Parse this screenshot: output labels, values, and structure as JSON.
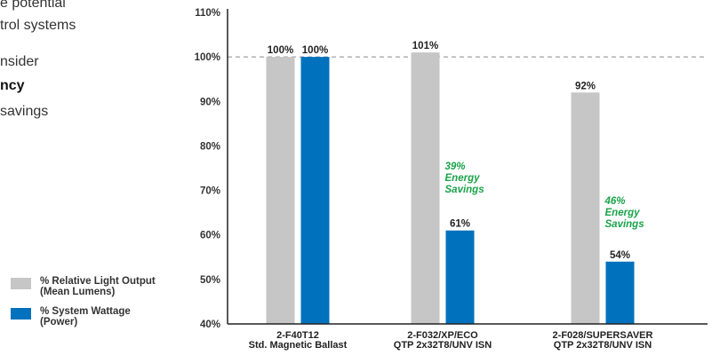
{
  "side_text": [
    {
      "text": "e potential",
      "bold": false
    },
    {
      "text": "trol systems",
      "bold": false
    },
    {
      "text": "nsider",
      "bold": false
    },
    {
      "text": "ncy",
      "bold": true
    },
    {
      "text": "savings",
      "bold": false
    }
  ],
  "legend": [
    {
      "label": "% Relative Light Output\n(Mean Lumens)",
      "color": "#c6c6c6"
    },
    {
      "label": "% System Wattage\n(Power)",
      "color": "#0071bc"
    }
  ],
  "chart_data": {
    "type": "bar",
    "title": "",
    "xlabel": "",
    "ylabel": "",
    "ylim": [
      40,
      110
    ],
    "yticks": [
      "40%",
      "50%",
      "60%",
      "70%",
      "80%",
      "90%",
      "100%",
      "110%"
    ],
    "reference_line": 100,
    "categories": [
      [
        "2-F40T12",
        "Std. Magnetic Ballast"
      ],
      [
        "2-F032/XP/ECO",
        "QTP 2x32T8/UNV ISN"
      ],
      [
        "2-F028/SUPERSAVER",
        "QTP 2x32T8/UNV ISN"
      ]
    ],
    "series": [
      {
        "name": "% Relative Light Output (Mean Lumens)",
        "color": "#c6c6c6",
        "values": [
          100,
          101,
          92
        ],
        "labels": [
          "100%",
          "101%",
          "92%"
        ]
      },
      {
        "name": "% System Wattage (Power)",
        "color": "#0071bc",
        "values": [
          100,
          61,
          54
        ],
        "labels": [
          "100%",
          "61%",
          "54%"
        ]
      }
    ],
    "annotations": [
      {
        "category_index": 1,
        "lines": [
          "39%",
          "Energy",
          "Savings"
        ],
        "color": "#1aa34a"
      },
      {
        "category_index": 2,
        "lines": [
          "46%",
          "Energy",
          "Savings"
        ],
        "color": "#1aa34a"
      }
    ]
  }
}
